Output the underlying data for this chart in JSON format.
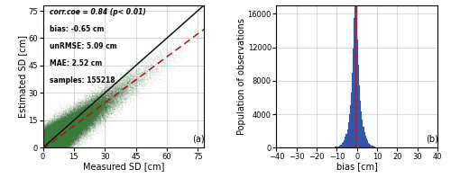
{
  "panel_a": {
    "xlabel": "Measured SD [cm]",
    "ylabel": "Estimated SD [cm]",
    "xlim": [
      0,
      78
    ],
    "ylim": [
      0,
      78
    ],
    "xticks": [
      0,
      15,
      30,
      45,
      60,
      75
    ],
    "yticks": [
      0,
      15,
      30,
      45,
      60,
      75
    ],
    "label": "(a)",
    "annotation_lines": [
      "corr.coe = 0.84 (p< 0.01)",
      "bias: -0.65 cm",
      "unRMSE: 5.09 cm",
      "MAE: 2.52 cm",
      "samples: 155218"
    ],
    "scatter_color": "#3a7a3a",
    "scatter_alpha": 0.08,
    "scatter_size": 0.8,
    "line1_color": "#111111",
    "line2_color": "#aa1111",
    "bias": -0.65,
    "corr_coe": 0.84,
    "reg_slope": 0.84,
    "reg_intercept": -0.65,
    "dashed_slope": 0.88,
    "dashed_intercept": -4.0
  },
  "panel_b": {
    "xlabel": "bias [cm]",
    "ylabel": "Population of observations",
    "xlim": [
      -40,
      40
    ],
    "ylim": [
      0,
      17000
    ],
    "xticks": [
      -40,
      -30,
      -20,
      -10,
      0,
      10,
      20,
      30,
      40
    ],
    "yticks": [
      0,
      4000,
      8000,
      12000,
      16000
    ],
    "label": "(b)",
    "hist_color": "#3355aa",
    "hist_edge_color": "#3355aa",
    "vline_color": "#cc1111",
    "bias_mean": -0.65,
    "n_samples": 155218,
    "hist_std": 3.2,
    "hist_std2": 1.2
  }
}
